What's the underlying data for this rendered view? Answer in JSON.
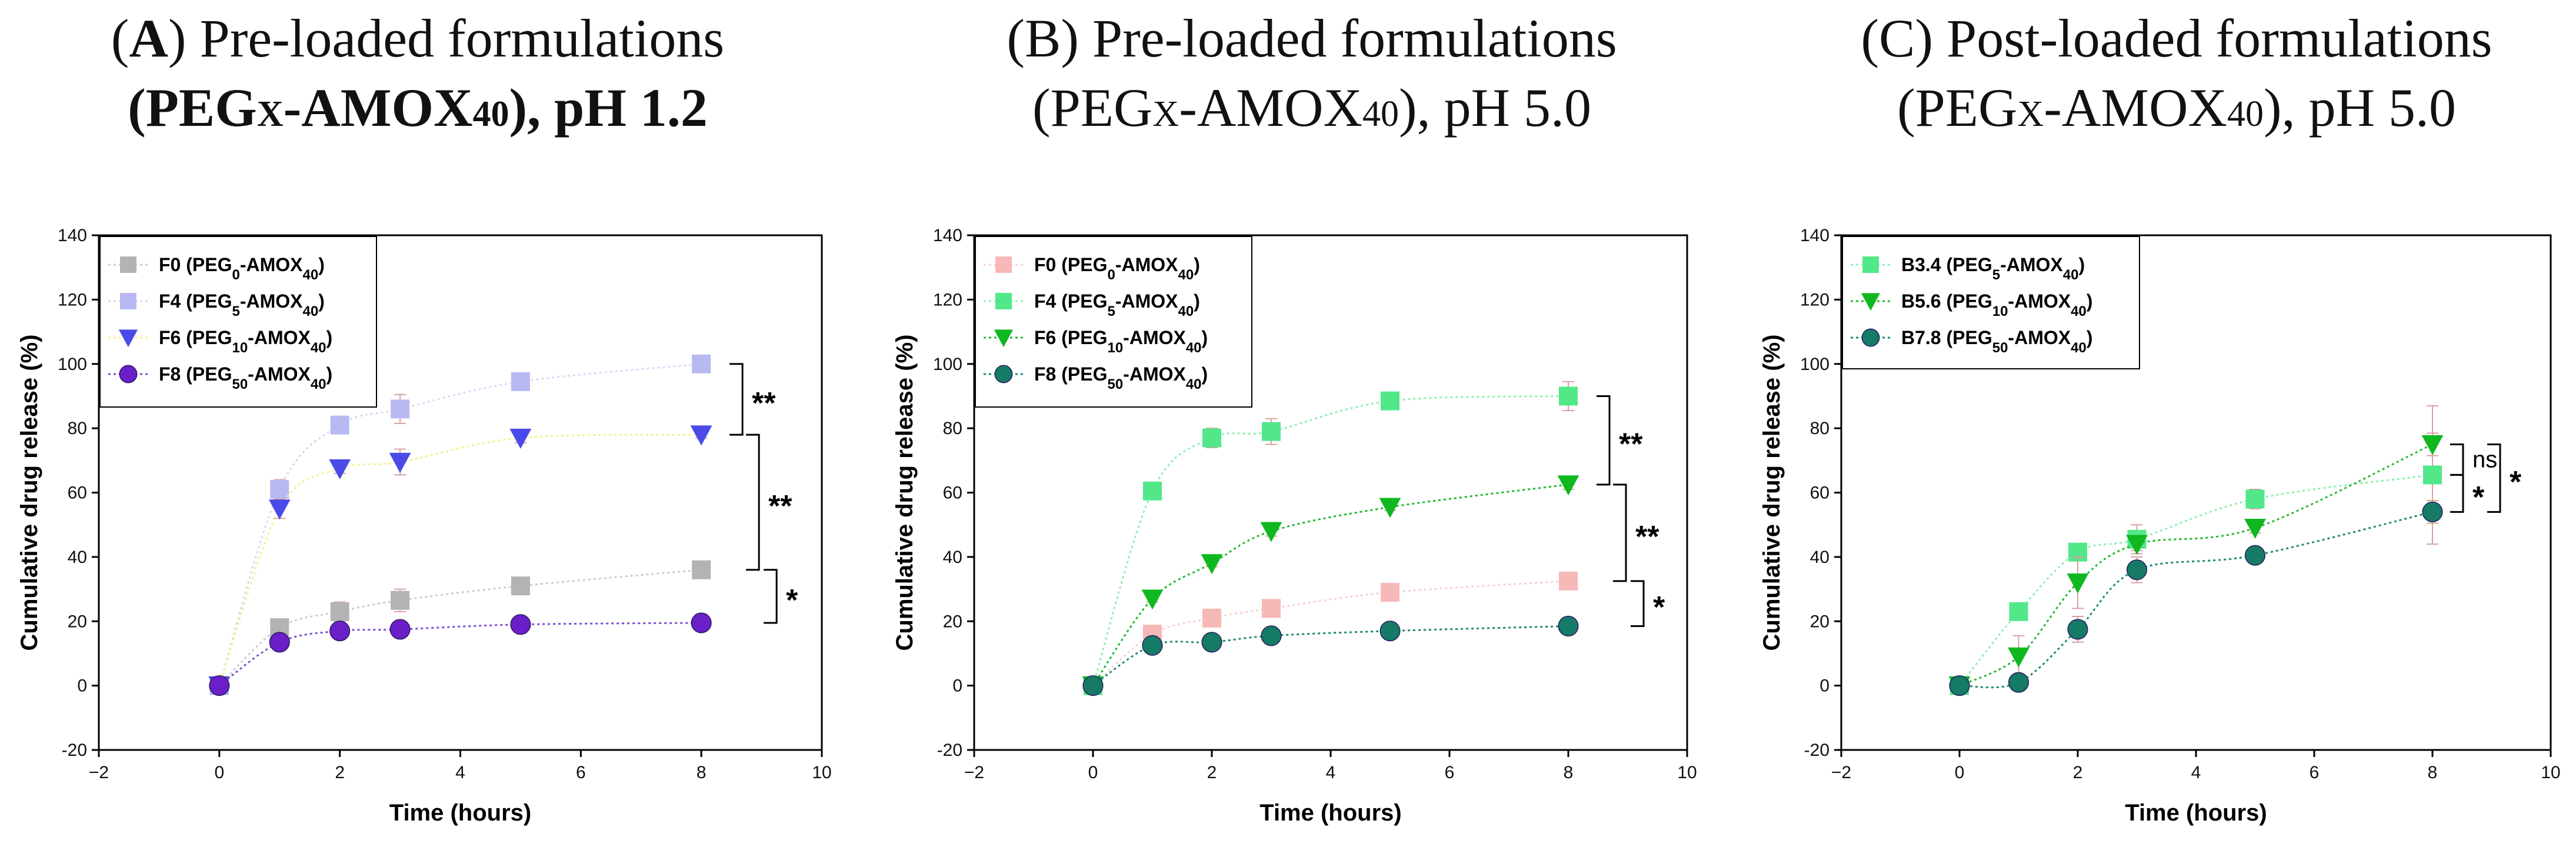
{
  "titles": [
    {
      "letter": "A",
      "line1_rest": "Pre-loaded formulations",
      "peg": "PEG",
      "x": "X",
      "amox": "-AMOX",
      "sub": "40",
      "tail": "), pH 1.2"
    },
    {
      "letter": "B",
      "line1_rest": "Pre-loaded formulations",
      "peg": "PEG",
      "x": "X",
      "amox": "-AMOX",
      "sub": "40",
      "tail": "), pH 5.0"
    },
    {
      "letter": "C",
      "line1_rest": "Post-loaded formulations",
      "peg": "PEG",
      "x": "X",
      "amox": "-AMOX",
      "sub": "40",
      "tail": "), pH 5.0"
    }
  ],
  "chart_data": [
    {
      "type": "scatter",
      "title": "(A) Pre-loaded formulations (PEGx-AMOX40), pH 1.2",
      "xlabel": "Time (hours)",
      "ylabel": "Cumulative drug release (%)",
      "xlim": [
        -2,
        10
      ],
      "ylim": [
        -20,
        140
      ],
      "xticks": [
        -2,
        0,
        2,
        4,
        6,
        8,
        10
      ],
      "yticks": [
        -20,
        0,
        20,
        40,
        60,
        80,
        100,
        120,
        140
      ],
      "legend_position": "top-left",
      "series": [
        {
          "name": "F0",
          "label_parts": [
            "F0  (PEG",
            "0",
            "-AMOX",
            "40",
            ")"
          ],
          "marker": "square",
          "color": "#b3b3b3",
          "line_color": "#cccccc",
          "x": [
            0,
            1,
            2,
            3,
            5,
            8
          ],
          "y": [
            0,
            18,
            23,
            26.5,
            31,
            36
          ],
          "err": [
            0,
            2,
            3,
            3.5,
            2,
            1.5
          ]
        },
        {
          "name": "F4",
          "label_parts": [
            "F4  (PEG",
            "5",
            "-AMOX",
            "40",
            ")"
          ],
          "marker": "square",
          "color": "#b8b8f2",
          "line_color": "#d8d8f5",
          "x": [
            0,
            1,
            2,
            3,
            5,
            8
          ],
          "y": [
            0,
            61,
            81,
            86,
            94.5,
            100
          ],
          "err": [
            0,
            3,
            1.5,
            4.5,
            1.5,
            1.5
          ]
        },
        {
          "name": "F6",
          "label_parts": [
            "F6  (PEG",
            "10",
            "-AMOX",
            "40",
            ")"
          ],
          "marker": "triangle-down",
          "color": "#4a4ae8",
          "line_color": "#f2f28a",
          "x": [
            0,
            1,
            2,
            3,
            5,
            8
          ],
          "y": [
            0,
            55,
            67.5,
            69.5,
            77,
            78
          ],
          "err": [
            0,
            3,
            1.5,
            4,
            1.5,
            1
          ]
        },
        {
          "name": "F8",
          "label_parts": [
            "F8  (PEG",
            "50",
            "-AMOX",
            "40",
            ")"
          ],
          "marker": "circle",
          "color": "#6a1fc8",
          "line_color": "#7b4ed6",
          "x": [
            0,
            1,
            2,
            3,
            5,
            8
          ],
          "y": [
            0,
            13.5,
            17,
            17.5,
            19,
            19.5
          ],
          "err": [
            0,
            1.5,
            1.5,
            1.5,
            1,
            1
          ]
        }
      ],
      "significance": [
        {
          "y_top": 100,
          "y_bottom": 78,
          "label": "**"
        },
        {
          "y_top": 78,
          "y_bottom": 36,
          "label": "**"
        },
        {
          "y_top": 36,
          "y_bottom": 19.5,
          "label": "*"
        }
      ]
    },
    {
      "type": "scatter",
      "title": "(B) Pre-loaded formulations (PEGx-AMOX40), pH 5.0",
      "xlabel": "Time (hours)",
      "ylabel": "Cumulative drug release (%)",
      "xlim": [
        -2,
        10
      ],
      "ylim": [
        -20,
        140
      ],
      "xticks": [
        -2,
        0,
        2,
        4,
        6,
        8,
        10
      ],
      "yticks": [
        -20,
        0,
        20,
        40,
        60,
        80,
        100,
        120,
        140
      ],
      "legend_position": "top-left",
      "series": [
        {
          "name": "F0",
          "label_parts": [
            "F0  (PEG",
            "0",
            "-AMOX",
            "40",
            ")"
          ],
          "marker": "square",
          "color": "#f7b8b8",
          "line_color": "#f5d0d0",
          "x": [
            0,
            1,
            2,
            3,
            5,
            8
          ],
          "y": [
            0,
            16,
            21,
            24,
            29,
            32.5
          ],
          "err": [
            0,
            1.5,
            1.5,
            1.5,
            1.5,
            1.5
          ]
        },
        {
          "name": "F4",
          "label_parts": [
            "F4  (PEG",
            "5",
            "-AMOX",
            "40",
            ")"
          ],
          "marker": "square",
          "color": "#52e88a",
          "line_color": "#8ef0b0",
          "x": [
            0,
            1,
            2,
            3,
            5,
            8
          ],
          "y": [
            0,
            60.5,
            77,
            79,
            88.5,
            90
          ],
          "err": [
            0,
            2.5,
            3,
            4,
            1.5,
            4.5
          ]
        },
        {
          "name": "F6",
          "label_parts": [
            "F6  (PEG",
            "10",
            "-AMOX",
            "40",
            ")"
          ],
          "marker": "triangle-down",
          "color": "#10b820",
          "line_color": "#20b830",
          "x": [
            0,
            1,
            2,
            3,
            5,
            8
          ],
          "y": [
            0,
            27,
            38,
            48,
            55.5,
            62.5
          ],
          "err": [
            0,
            1,
            1,
            1.5,
            1,
            1.5
          ]
        },
        {
          "name": "F8",
          "label_parts": [
            "F8  (PEG",
            "50",
            "-AMOX",
            "40",
            ")"
          ],
          "marker": "circle",
          "color": "#157a66",
          "line_color": "#1a8a74",
          "x": [
            0,
            1,
            2,
            3,
            5,
            8
          ],
          "y": [
            0,
            12.5,
            13.5,
            15.5,
            17,
            18.5
          ],
          "err": [
            0,
            1,
            1,
            1,
            1,
            1
          ]
        }
      ],
      "significance": [
        {
          "y_top": 90,
          "y_bottom": 62.5,
          "label": "**"
        },
        {
          "y_top": 62.5,
          "y_bottom": 32.5,
          "label": "**"
        },
        {
          "y_top": 32.5,
          "y_bottom": 18.5,
          "label": "*"
        }
      ]
    },
    {
      "type": "scatter",
      "title": "(C) Post-loaded formulations (PEGx-AMOX40), pH 5.0",
      "xlabel": "Time (hours)",
      "ylabel": "Cumulative drug release (%)",
      "xlim": [
        -2,
        10
      ],
      "ylim": [
        -20,
        140
      ],
      "xticks": [
        -2,
        0,
        2,
        4,
        6,
        8,
        10
      ],
      "yticks": [
        -20,
        0,
        20,
        40,
        60,
        80,
        100,
        120,
        140
      ],
      "legend_position": "top-left",
      "series": [
        {
          "name": "B3.4",
          "label_parts": [
            "B3.4  (PEG",
            "5",
            "-AMOX",
            "40",
            ")"
          ],
          "marker": "square",
          "color": "#52e88a",
          "line_color": "#8ef0b0",
          "x": [
            0,
            1,
            2,
            3,
            5,
            8
          ],
          "y": [
            0,
            23,
            41.5,
            45.5,
            58,
            65.5
          ],
          "err": [
            0,
            2,
            2.5,
            4.5,
            3,
            21.5
          ]
        },
        {
          "name": "B5.6",
          "label_parts": [
            "B5.6  (PEG",
            "10",
            "-AMOX",
            "40",
            ")"
          ],
          "marker": "triangle-down",
          "color": "#10b820",
          "line_color": "#20b830",
          "x": [
            0,
            1,
            2,
            3,
            5,
            8
          ],
          "y": [
            0,
            9,
            32,
            44,
            49,
            75
          ],
          "err": [
            0,
            6.5,
            8,
            2,
            1.5,
            3.5
          ]
        },
        {
          "name": "B7.8",
          "label_parts": [
            "B7.8  (PEG",
            "50",
            "-AMOX",
            "40",
            ")"
          ],
          "marker": "circle",
          "color": "#157a66",
          "line_color": "#1a8a74",
          "x": [
            0,
            1,
            2,
            3,
            5,
            8
          ],
          "y": [
            0,
            1,
            17.5,
            36,
            40.5,
            54
          ],
          "err": [
            0,
            2,
            4,
            4,
            1.5,
            3.5
          ]
        }
      ],
      "significance": [
        {
          "y_top": 75,
          "y_bottom": 65.5,
          "label": "ns"
        },
        {
          "y_top": 65.5,
          "y_bottom": 54,
          "label": "*"
        },
        {
          "y_top": 75,
          "y_bottom": 54,
          "label": "*"
        }
      ]
    }
  ]
}
